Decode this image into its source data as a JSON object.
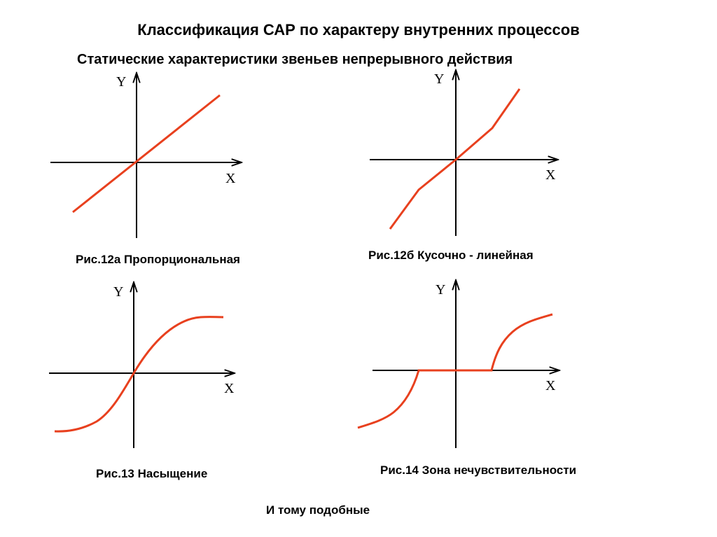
{
  "title": "Классификация САР по характеру внутренних процессов",
  "subtitle": "Статические характеристики звеньев непрерывного действия",
  "colors": {
    "curve": "#e8401e",
    "axis": "#000000",
    "background": "#ffffff"
  },
  "figures": [
    {
      "caption": "Рис.12а Пропорциональная",
      "x_label": "X",
      "y_label": "Y"
    },
    {
      "caption": "Рис.12б Кусочно - линейная",
      "x_label": "X",
      "y_label": "Y"
    },
    {
      "caption": "Рис.13 Насыщение",
      "x_label": "X",
      "y_label": "Y"
    },
    {
      "caption": "Рис.14 Зона нечувствительности",
      "x_label": "X",
      "y_label": "Y"
    }
  ],
  "footer_note": "И тому подобные"
}
